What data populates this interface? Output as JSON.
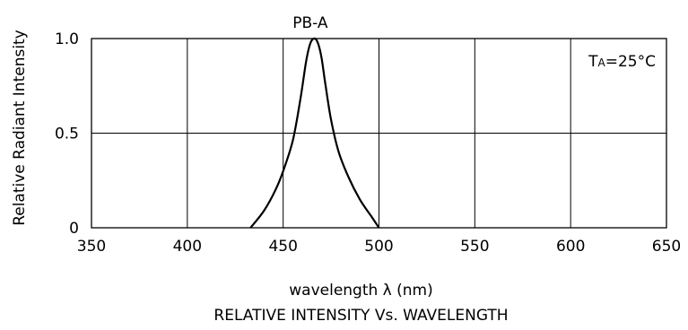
{
  "chart_data": {
    "type": "line",
    "title": "RELATIVE INTENSITY Vs. WAVELENGTH",
    "xlabel": "wavelength λ (nm)",
    "ylabel": "Relative Radiant Intensity",
    "xlim": [
      350,
      650
    ],
    "ylim": [
      0,
      1.0
    ],
    "x_ticks": [
      350,
      400,
      450,
      500,
      550,
      600,
      650
    ],
    "y_ticks": [
      0,
      0.5,
      1.0
    ],
    "y_tick_labels": [
      "0",
      "0.5",
      "1.0"
    ],
    "grid": true,
    "series": [
      {
        "name": "PB-A",
        "x": [
          433,
          440,
          446,
          450,
          455,
          459,
          462,
          464,
          466,
          468,
          470,
          472,
          475,
          479,
          484,
          490,
          496,
          500
        ],
        "y": [
          0.0,
          0.09,
          0.2,
          0.3,
          0.46,
          0.68,
          0.88,
          0.97,
          1.0,
          0.98,
          0.9,
          0.76,
          0.57,
          0.4,
          0.27,
          0.15,
          0.06,
          0.0
        ]
      }
    ],
    "annotations": [
      {
        "text": "TA=25°C",
        "position": "top-right"
      }
    ]
  }
}
